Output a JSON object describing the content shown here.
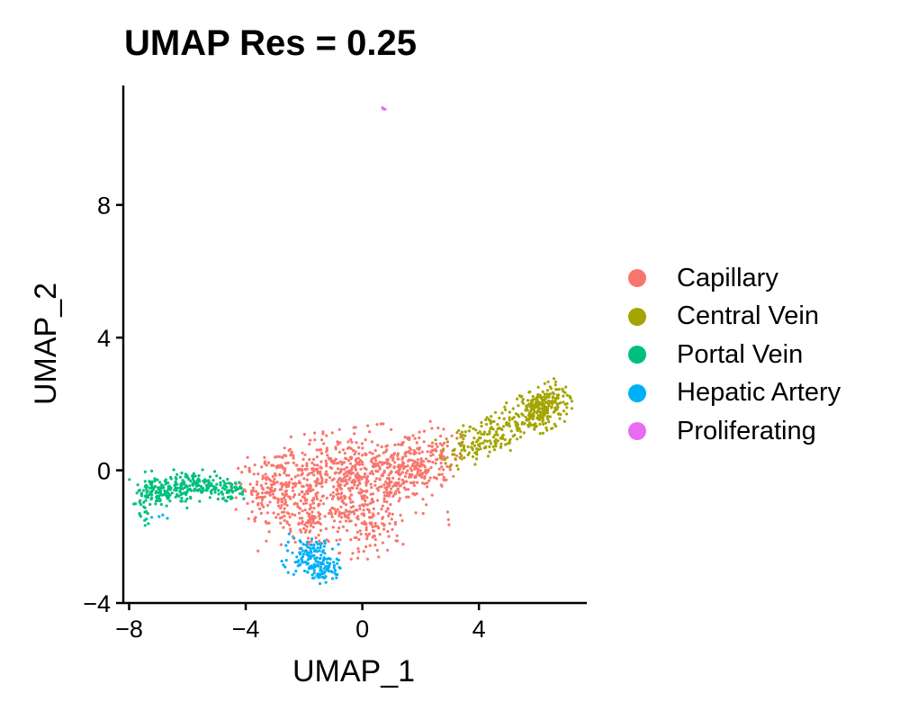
{
  "chart_data": {
    "type": "scatter",
    "title": "UMAP Res = 0.25",
    "xlabel": "UMAP_1",
    "ylabel": "UMAP_2",
    "xlim": [
      -8.2,
      7.7
    ],
    "ylim": [
      -4.0,
      11.6
    ],
    "xticks": [
      -8,
      -4,
      0,
      4
    ],
    "yticks": [
      -4,
      0,
      4,
      8
    ],
    "xtick_labels": [
      "−8",
      "−4",
      "0",
      "4"
    ],
    "ytick_labels": [
      "−4",
      "0",
      "4",
      "8"
    ],
    "grid": false,
    "legend_position": "right",
    "series": [
      {
        "name": "Capillary",
        "color": "#F8766D",
        "clusters": [
          {
            "cx": -0.5,
            "cy": -0.4,
            "sx": 1.5,
            "sy": 0.75,
            "n": 650,
            "rot": 0.12
          },
          {
            "cx": 1.7,
            "cy": 0.15,
            "sx": 0.85,
            "sy": 0.4,
            "n": 220,
            "rot": 0.3
          },
          {
            "cx": -2.9,
            "cy": -0.6,
            "sx": 0.65,
            "sy": 0.45,
            "n": 170,
            "rot": 0.0
          },
          {
            "cx": 0.3,
            "cy": -1.8,
            "sx": 0.5,
            "sy": 0.4,
            "n": 80,
            "rot": 0.0
          },
          {
            "cx": -1.7,
            "cy": -1.7,
            "sx": 0.35,
            "sy": 0.3,
            "n": 40,
            "rot": 0.0
          },
          {
            "cx": -2.7,
            "cy": 0.5,
            "sx": 0.15,
            "sy": 0.2,
            "n": 12,
            "rot": 0.0
          }
        ]
      },
      {
        "name": "Central Vein",
        "color": "#A3A500",
        "clusters": [
          {
            "cx": 6.2,
            "cy": 1.85,
            "sx": 0.45,
            "sy": 0.3,
            "n": 230,
            "rot": 0.45
          },
          {
            "cx": 4.7,
            "cy": 1.2,
            "sx": 0.8,
            "sy": 0.32,
            "n": 140,
            "rot": 0.42
          },
          {
            "cx": 3.6,
            "cy": 0.75,
            "sx": 0.45,
            "sy": 0.3,
            "n": 60,
            "rot": 0.3
          }
        ]
      },
      {
        "name": "Portal Vein",
        "color": "#00BF7D",
        "clusters": [
          {
            "cx": -5.8,
            "cy": -0.45,
            "sx": 0.75,
            "sy": 0.22,
            "n": 180,
            "rot": 0.0
          },
          {
            "cx": -7.0,
            "cy": -0.7,
            "sx": 0.45,
            "sy": 0.2,
            "n": 90,
            "rot": 0.0
          },
          {
            "cx": -4.5,
            "cy": -0.6,
            "sx": 0.25,
            "sy": 0.15,
            "n": 35,
            "rot": 0.0
          },
          {
            "cx": -7.5,
            "cy": -1.4,
            "sx": 0.1,
            "sy": 0.2,
            "n": 12,
            "rot": 0.0
          }
        ]
      },
      {
        "name": "Hepatic Artery",
        "color": "#00B0F6",
        "clusters": [
          {
            "cx": -1.7,
            "cy": -2.65,
            "sx": 0.45,
            "sy": 0.3,
            "n": 150,
            "rot": -0.3
          },
          {
            "cx": -1.3,
            "cy": -3.05,
            "sx": 0.2,
            "sy": 0.15,
            "n": 30,
            "rot": 0.0
          },
          {
            "cx": -7.0,
            "cy": -1.45,
            "sx": 0.15,
            "sy": 0.1,
            "n": 4,
            "rot": 0.0
          }
        ]
      },
      {
        "name": "Proliferating",
        "color": "#E76BF3",
        "clusters": [
          {
            "cx": 0.72,
            "cy": 10.9,
            "sx": 0.03,
            "sy": 0.02,
            "n": 4,
            "rot": 0.0
          }
        ]
      }
    ]
  }
}
